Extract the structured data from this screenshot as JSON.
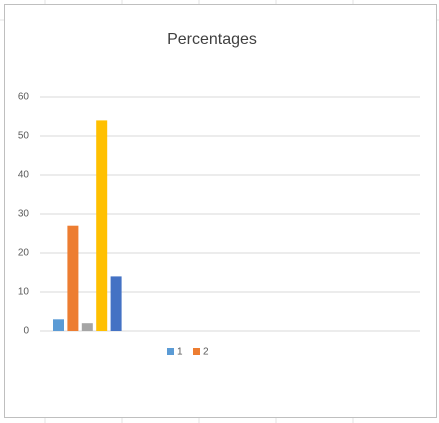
{
  "chart_data": {
    "type": "bar",
    "title": "Percentages",
    "categories": [
      null,
      null,
      null,
      null,
      null
    ],
    "series": [
      {
        "name": "1",
        "color": "#5b9bd5",
        "values": [
          3,
          null,
          null,
          null,
          null
        ]
      },
      {
        "name": "2",
        "color": "#ed7d31",
        "values": [
          27,
          null,
          null,
          null,
          null
        ]
      },
      {
        "name": null,
        "color": "#a5a5a5",
        "values": [
          2,
          null,
          null,
          null,
          null
        ]
      },
      {
        "name": null,
        "color": "#ffc000",
        "values": [
          54,
          null,
          null,
          null,
          null
        ]
      },
      {
        "name": null,
        "color": "#4472c4",
        "values": [
          14,
          null,
          null,
          null,
          null
        ]
      }
    ],
    "ylim": [
      0,
      60
    ],
    "yticks": [
      0,
      10,
      20,
      30,
      40,
      50,
      60
    ],
    "grid": true
  }
}
